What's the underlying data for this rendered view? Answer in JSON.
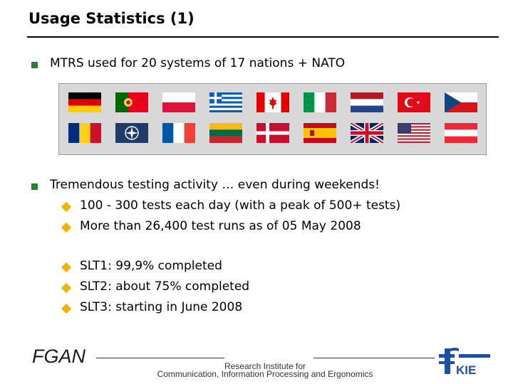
{
  "slide": {
    "title": "Usage Statistics (1)"
  },
  "bullets": [
    {
      "text": "MTRS used for 20 systems of 17 nations + NATO"
    },
    {
      "text": "Tremendous testing activity … even during weekends!"
    }
  ],
  "subbullets": [
    {
      "text": "100 - 300 tests each day (with a peak of 500+ tests)"
    },
    {
      "text": "More than 26,400 test runs as of 05 May 2008"
    },
    {
      "text": "SLT1: 99,9% completed"
    },
    {
      "text": "SLT2: about 75% completed"
    },
    {
      "text": "SLT3: starting in June 2008"
    }
  ],
  "flags": {
    "row1": [
      "germany-flag",
      "portugal-flag",
      "poland-flag",
      "greece-flag",
      "canada-flag",
      "italy-flag",
      "netherlands-flag",
      "turkey-flag",
      "czech-flag"
    ],
    "row2": [
      "romania-flag",
      "nato-flag",
      "france-flag",
      "lithuania-flag",
      "denmark-flag",
      "spain-flag",
      "uk-flag",
      "usa-flag",
      "austria-flag"
    ]
  },
  "footer": {
    "org": "FGAN",
    "line1": "Research Institute for",
    "line2": "Communication, Information Processing and Ergonomics",
    "logo_text": "KIE"
  },
  "colors": {
    "bullet": "#2e7d32",
    "subbullet": "#f0b400",
    "logo": "#1e4fa3"
  }
}
